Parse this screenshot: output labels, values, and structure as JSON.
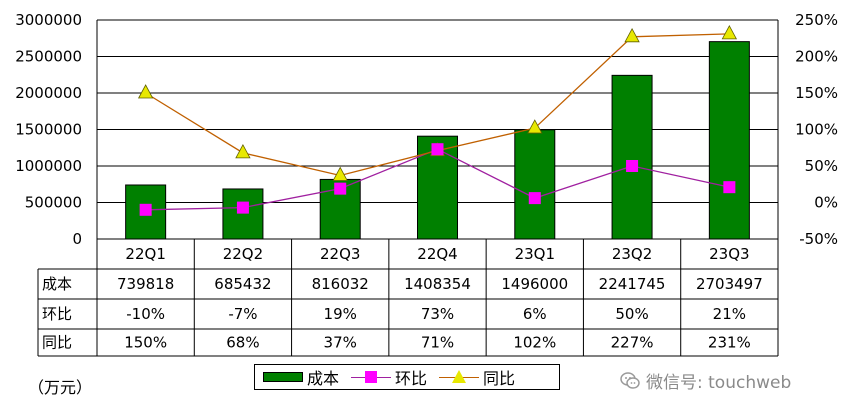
{
  "chart_data": {
    "type": "bar",
    "categories": [
      "22Q1",
      "22Q2",
      "22Q3",
      "22Q4",
      "23Q1",
      "23Q2",
      "23Q3"
    ],
    "series": [
      {
        "name": "成本",
        "type": "bar",
        "axis": "left",
        "color": "#008000",
        "values": [
          739818,
          685432,
          816032,
          1408354,
          1496000,
          2241745,
          2703497
        ]
      },
      {
        "name": "环比",
        "type": "line",
        "axis": "right",
        "color": "#ff00ff",
        "line_color": "#a020a0",
        "values": [
          -10,
          -7,
          19,
          73,
          6,
          50,
          21
        ]
      },
      {
        "name": "同比",
        "type": "line",
        "axis": "right",
        "color": "#e8e800",
        "line_color": "#c06000",
        "values": [
          150,
          68,
          37,
          71,
          102,
          227,
          231
        ]
      }
    ],
    "y_left": {
      "range": [
        0,
        3000000
      ],
      "ticks": [
        "3000000",
        "2500000",
        "2000000",
        "1500000",
        "1000000",
        "500000",
        "0"
      ]
    },
    "y_right": {
      "range": [
        -50,
        250
      ],
      "ticks": [
        "250%",
        "200%",
        "150%",
        "100%",
        "50%",
        "0%",
        "-50%"
      ]
    },
    "grid": true,
    "legend": "bottom"
  },
  "table": {
    "rows": [
      {
        "label": "成本",
        "cells": [
          "739818",
          "685432",
          "816032",
          "1408354",
          "1496000",
          "2241745",
          "2703497"
        ]
      },
      {
        "label": "环比",
        "cells": [
          "-10%",
          "-7%",
          "19%",
          "73%",
          "6%",
          "50%",
          "21%"
        ]
      },
      {
        "label": "同比",
        "cells": [
          "150%",
          "68%",
          "37%",
          "71%",
          "102%",
          "227%",
          "231%"
        ]
      }
    ]
  },
  "unit_label": "（万元）",
  "legend": {
    "bar": "成本",
    "hb": "环比",
    "tb": "同比"
  },
  "watermark": {
    "text": "微信号: touchweb",
    "icon": "wechat-icon"
  }
}
